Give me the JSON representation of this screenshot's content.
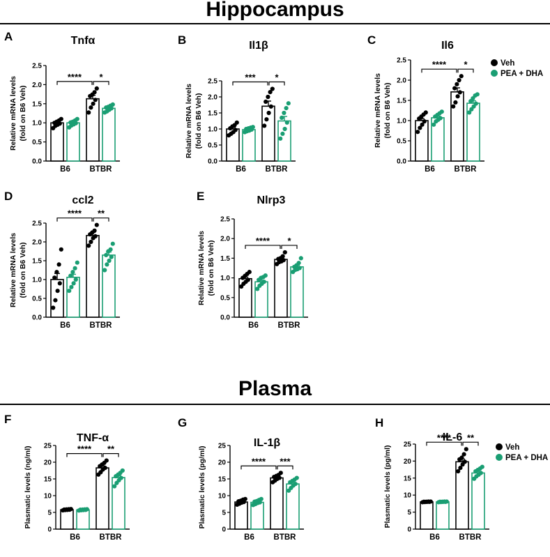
{
  "sections": {
    "hippocampus": "Hippocampus",
    "plasma": "Plasma"
  },
  "colors": {
    "veh": "#000000",
    "pea_dha": "#1a9e73"
  },
  "chart_data": [
    {
      "panel": "A",
      "type": "bar",
      "title": "Tnfα",
      "ylabel_lines": [
        "Relative mRNA levels",
        "(fold on B6 Veh)"
      ],
      "categories": [
        "B6",
        "BTBR"
      ],
      "ylim": [
        0,
        2.5
      ],
      "yticks": [
        0,
        0.5,
        1.0,
        1.5,
        2.0,
        2.5
      ],
      "legend": null,
      "series": [
        {
          "name": "Veh",
          "values": [
            1.0,
            1.63
          ],
          "sem": [
            0.03,
            0.09
          ],
          "points": [
            [
              0.86,
              0.92,
              0.95,
              0.98,
              1.0,
              1.03,
              1.06,
              1.1
            ],
            [
              1.27,
              1.4,
              1.5,
              1.6,
              1.7,
              1.74,
              1.8,
              1.9
            ]
          ]
        },
        {
          "name": "PEA + DHA",
          "values": [
            1.0,
            1.38
          ],
          "sem": [
            0.02,
            0.03
          ],
          "points": [
            [
              0.88,
              0.93,
              0.96,
              0.99,
              1.01,
              1.03,
              1.06,
              1.1
            ],
            [
              1.27,
              1.3,
              1.34,
              1.38,
              1.4,
              1.42,
              1.45,
              1.48
            ]
          ]
        }
      ],
      "significance": [
        {
          "from": 0,
          "to": 2,
          "label": "****"
        },
        {
          "from": 2,
          "to": 3,
          "label": "*"
        }
      ]
    },
    {
      "panel": "B",
      "type": "bar",
      "title": "Il1β",
      "ylabel_lines": [
        "Relative mRNA levels",
        "(fold on B6 Veh)"
      ],
      "categories": [
        "B6",
        "BTBR"
      ],
      "ylim": [
        0,
        2.5
      ],
      "yticks": [
        0,
        0.5,
        1.0,
        1.5,
        2.0,
        2.5
      ],
      "legend": null,
      "series": [
        {
          "name": "Veh",
          "values": [
            1.0,
            1.71
          ],
          "sem": [
            0.05,
            0.16
          ],
          "points": [
            [
              0.8,
              0.85,
              0.9,
              0.97,
              1.02,
              1.08,
              1.12,
              1.2
            ],
            [
              1.1,
              1.3,
              1.5,
              1.7,
              1.85,
              2.0,
              2.15,
              2.25
            ]
          ]
        },
        {
          "name": "PEA + DHA",
          "values": [
            0.98,
            1.25
          ],
          "sem": [
            0.02,
            0.14
          ],
          "points": [
            [
              0.9,
              0.93,
              0.95,
              0.98,
              1.0,
              1.02,
              1.04,
              1.06
            ],
            [
              0.7,
              0.85,
              1.0,
              1.2,
              1.35,
              1.5,
              1.65,
              1.8
            ]
          ]
        }
      ],
      "significance": [
        {
          "from": 0,
          "to": 2,
          "label": "***"
        },
        {
          "from": 2,
          "to": 3,
          "label": "*"
        }
      ]
    },
    {
      "panel": "C",
      "type": "bar",
      "title": "Il6",
      "ylabel_lines": [
        "Relative mRNA levels",
        "(fold on B6 Veh)"
      ],
      "categories": [
        "B6",
        "BTBR"
      ],
      "ylim": [
        0,
        2.5
      ],
      "yticks": [
        0,
        0.5,
        1.0,
        1.5,
        2.0,
        2.5
      ],
      "legend": [
        {
          "series": 0,
          "label": "Veh"
        },
        {
          "series": 1,
          "label": "PEA + DHA"
        }
      ],
      "series": [
        {
          "name": "Veh",
          "values": [
            1.0,
            1.71
          ],
          "sem": [
            0.05,
            0.1
          ],
          "points": [
            [
              0.72,
              0.82,
              0.9,
              0.98,
              1.05,
              1.1,
              1.15,
              1.2
            ],
            [
              1.35,
              1.45,
              1.6,
              1.7,
              1.8,
              1.9,
              2.0,
              2.1
            ]
          ]
        },
        {
          "name": "PEA + DHA",
          "values": [
            1.07,
            1.43
          ],
          "sem": [
            0.04,
            0.06
          ],
          "points": [
            [
              0.9,
              0.98,
              1.02,
              1.06,
              1.1,
              1.14,
              1.18,
              1.22
            ],
            [
              1.2,
              1.28,
              1.35,
              1.42,
              1.48,
              1.55,
              1.62,
              1.65
            ]
          ]
        }
      ],
      "significance": [
        {
          "from": 0,
          "to": 2,
          "label": "****"
        },
        {
          "from": 2,
          "to": 3,
          "label": "*"
        }
      ]
    },
    {
      "panel": "D",
      "type": "bar",
      "title": "ccl2",
      "ylabel_lines": [
        "Relative mRNA levels",
        "(fold on B6 Veh)"
      ],
      "categories": [
        "B6",
        "BTBR"
      ],
      "ylim": [
        0,
        2.5
      ],
      "yticks": [
        0,
        0.5,
        1.0,
        1.5,
        2.0,
        2.5
      ],
      "legend": null,
      "series": [
        {
          "name": "Veh",
          "values": [
            1.0,
            2.17
          ],
          "sem": [
            0.16,
            0.08
          ],
          "points": [
            [
              0.25,
              0.45,
              0.7,
              0.9,
              1.05,
              1.2,
              1.4,
              1.8
            ],
            [
              1.9,
              2.0,
              2.1,
              2.15,
              2.2,
              2.25,
              2.3,
              2.45
            ]
          ]
        },
        {
          "name": "PEA + DHA",
          "values": [
            1.06,
            1.65
          ],
          "sem": [
            0.08,
            0.08
          ],
          "points": [
            [
              0.7,
              0.8,
              0.9,
              1.0,
              1.1,
              1.2,
              1.3,
              1.45
            ],
            [
              1.25,
              1.4,
              1.5,
              1.6,
              1.65,
              1.75,
              1.8,
              1.95
            ]
          ]
        }
      ],
      "significance": [
        {
          "from": 0,
          "to": 2,
          "label": "****"
        },
        {
          "from": 2,
          "to": 3,
          "label": "**"
        }
      ]
    },
    {
      "panel": "E",
      "type": "bar",
      "title": "Nlrp3",
      "ylabel_lines": [
        "Relative mRNA levels",
        "(fold on B6 Veh)"
      ],
      "categories": [
        "B6",
        "BTBR"
      ],
      "ylim": [
        0,
        2.5
      ],
      "yticks": [
        0,
        0.5,
        1.0,
        1.5,
        2.0,
        2.5
      ],
      "legend": null,
      "series": [
        {
          "name": "Veh",
          "values": [
            0.98,
            1.47
          ],
          "sem": [
            0.04,
            0.04
          ],
          "points": [
            [
              0.78,
              0.85,
              0.9,
              0.95,
              1.0,
              1.05,
              1.1,
              1.15
            ],
            [
              1.35,
              1.4,
              1.42,
              1.45,
              1.48,
              1.5,
              1.55,
              1.65
            ]
          ]
        },
        {
          "name": "PEA + DHA",
          "values": [
            0.9,
            1.28
          ],
          "sem": [
            0.04,
            0.04
          ],
          "points": [
            [
              0.72,
              0.8,
              0.85,
              0.9,
              0.95,
              1.0,
              1.02,
              1.06
            ],
            [
              1.15,
              1.2,
              1.22,
              1.25,
              1.28,
              1.32,
              1.38,
              1.5
            ]
          ]
        }
      ],
      "significance": [
        {
          "from": 0,
          "to": 2,
          "label": "****"
        },
        {
          "from": 2,
          "to": 3,
          "label": "*"
        }
      ]
    },
    {
      "panel": "F",
      "type": "bar",
      "title": "TNF-α",
      "ylabel_lines": [
        "Plasmatic levels (ng/ml)"
      ],
      "categories": [
        "B6",
        "BTBR"
      ],
      "ylim": [
        0,
        25
      ],
      "yticks": [
        0,
        5,
        10,
        15,
        20,
        25
      ],
      "legend": null,
      "series": [
        {
          "name": "Veh",
          "values": [
            5.8,
            18.3
          ],
          "sem": [
            0.1,
            0.6
          ],
          "points": [
            [
              5.6,
              5.7,
              5.75,
              5.8,
              5.85,
              5.9,
              5.95,
              6.0
            ],
            [
              16.3,
              17.0,
              17.8,
              18.3,
              18.8,
              19.3,
              19.8,
              20.5
            ]
          ]
        },
        {
          "name": "PEA + DHA",
          "values": [
            5.75,
            15.4
          ],
          "sem": [
            0.1,
            0.6
          ],
          "points": [
            [
              5.55,
              5.65,
              5.7,
              5.75,
              5.8,
              5.85,
              5.9,
              5.95
            ],
            [
              12.8,
              13.8,
              14.6,
              15.3,
              15.8,
              16.3,
              16.8,
              17.5
            ]
          ]
        }
      ],
      "significance": [
        {
          "from": 0,
          "to": 2,
          "label": "****"
        },
        {
          "from": 2,
          "to": 3,
          "label": "**"
        }
      ]
    },
    {
      "panel": "G",
      "type": "bar",
      "title": "IL-1β",
      "ylabel_lines": [
        "Plasmatic levels (pg/ml)"
      ],
      "categories": [
        "B6",
        "BTBR"
      ],
      "ylim": [
        0,
        25
      ],
      "yticks": [
        0,
        5,
        10,
        15,
        20,
        25
      ],
      "legend": null,
      "series": [
        {
          "name": "Veh",
          "values": [
            8.1,
            15.3
          ],
          "sem": [
            0.3,
            0.4
          ],
          "points": [
            [
              7.3,
              7.6,
              7.9,
              8.1,
              8.3,
              8.5,
              8.8,
              9.0
            ],
            [
              14.0,
              14.5,
              15.0,
              15.3,
              15.6,
              15.9,
              16.2,
              16.8
            ]
          ]
        },
        {
          "name": "PEA + DHA",
          "values": [
            8.0,
            13.5
          ],
          "sem": [
            0.3,
            0.5
          ],
          "points": [
            [
              7.2,
              7.5,
              7.8,
              8.0,
              8.2,
              8.4,
              8.7,
              9.0
            ],
            [
              11.5,
              12.3,
              13.0,
              13.5,
              14.0,
              14.4,
              14.8,
              15.3
            ]
          ]
        }
      ],
      "significance": [
        {
          "from": 0,
          "to": 2,
          "label": "****"
        },
        {
          "from": 2,
          "to": 3,
          "label": "***"
        }
      ]
    },
    {
      "panel": "H",
      "type": "bar",
      "title": "IL-6",
      "ylabel_lines": [
        "Plasmatic levels (pg/ml)"
      ],
      "categories": [
        "B6",
        "BTBR"
      ],
      "ylim": [
        0,
        25
      ],
      "yticks": [
        0,
        5,
        10,
        15,
        20,
        25
      ],
      "legend": [
        {
          "series": 0,
          "label": "Veh"
        },
        {
          "series": 1,
          "label": "PEA + DHA"
        }
      ],
      "series": [
        {
          "name": "Veh",
          "values": [
            8.0,
            19.8
          ],
          "sem": [
            0.05,
            0.8
          ],
          "points": [
            [
              7.9,
              7.95,
              8.0,
              8.0,
              8.05,
              8.05,
              8.1,
              8.1
            ],
            [
              17.0,
              18.0,
              19.0,
              19.8,
              20.5,
              21.0,
              22.0,
              23.5
            ]
          ]
        },
        {
          "name": "PEA + DHA",
          "values": [
            8.0,
            16.5
          ],
          "sem": [
            0.05,
            0.5
          ],
          "points": [
            [
              7.9,
              7.95,
              8.0,
              8.0,
              8.05,
              8.05,
              8.1,
              8.1
            ],
            [
              14.8,
              15.5,
              16.0,
              16.5,
              17.0,
              17.4,
              17.8,
              18.3
            ]
          ]
        }
      ],
      "significance": [
        {
          "from": 0,
          "to": 2,
          "label": "****"
        },
        {
          "from": 2,
          "to": 3,
          "label": "**"
        }
      ]
    }
  ]
}
